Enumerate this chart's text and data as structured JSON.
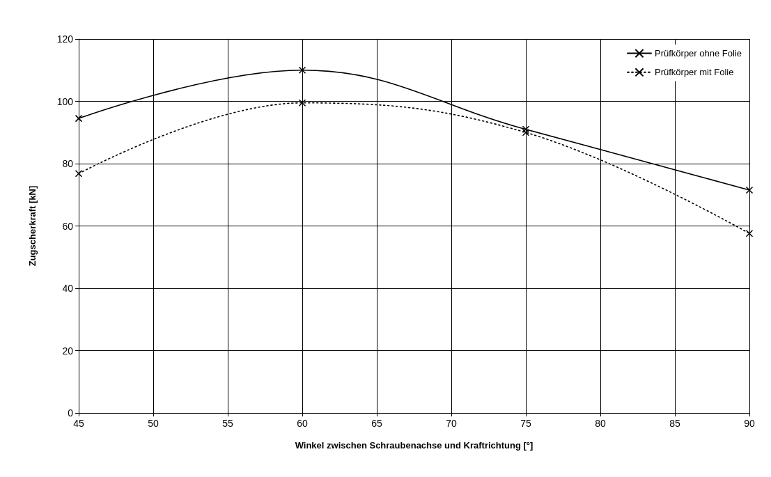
{
  "chart_data": {
    "type": "line",
    "xlabel": "Winkel zwischen Schraubenachse und Kraftrichtung [°]",
    "ylabel": "Zugscherkraft [kN]",
    "x": [
      45,
      60,
      75,
      90
    ],
    "series": [
      {
        "name": "Prüfkörper ohne Folie",
        "color": "#000000",
        "values": [
          94.5,
          110,
          91,
          71.5
        ],
        "line_style": "solid"
      },
      {
        "name": "Prüfkörper mit Folie",
        "color": "#000000",
        "values": [
          76.8,
          99.5,
          90,
          57.6
        ],
        "line_style": "dotted"
      }
    ],
    "xlim": [
      45,
      90
    ],
    "xticks": [
      45,
      50,
      55,
      60,
      65,
      70,
      75,
      80,
      85,
      90
    ],
    "ylim": [
      0,
      120
    ],
    "yticks": [
      0,
      20,
      40,
      60,
      80,
      100,
      120
    ],
    "grid": true,
    "legend": "top right",
    "marker": "cross"
  }
}
